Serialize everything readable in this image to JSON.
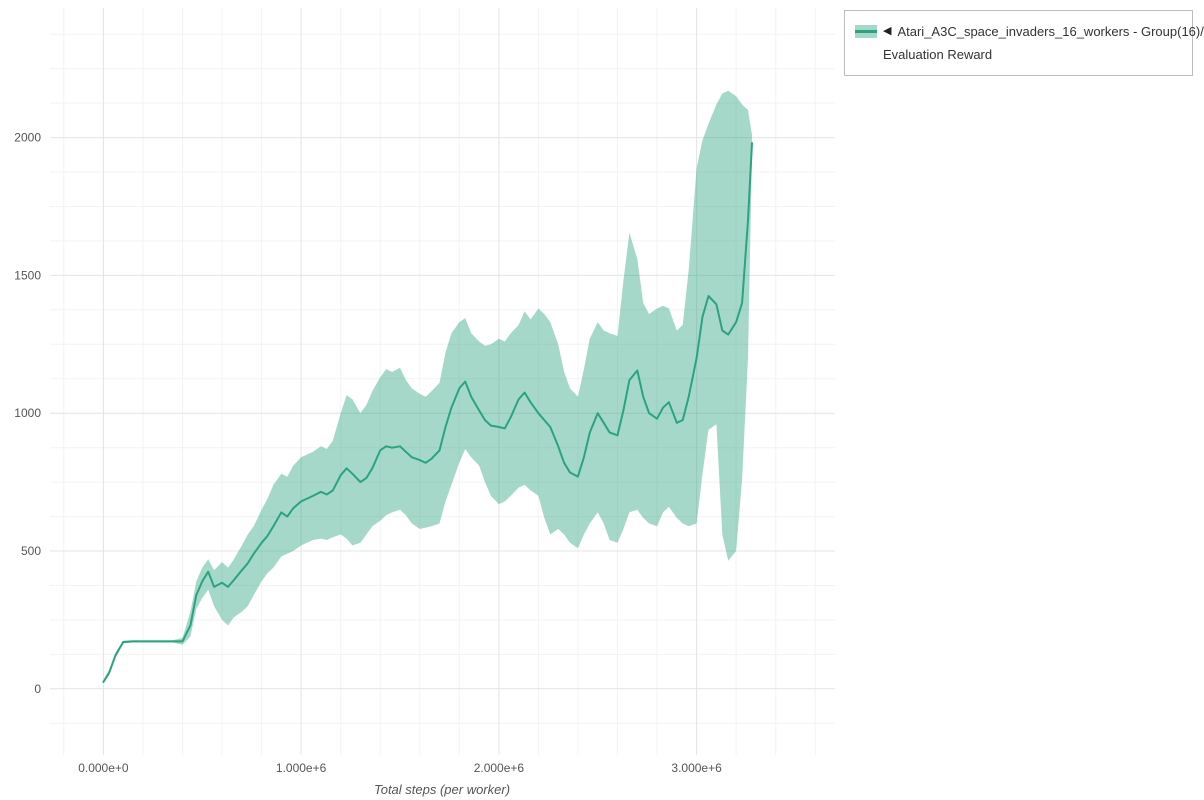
{
  "legend": {
    "marker": "◀",
    "series_name": "Atari_A3C_space_invaders_16_workers - Group(16)/",
    "metric_name": "Evaluation Reward"
  },
  "colors": {
    "accent": "#2aa381",
    "grid_major": "#e4e4e4",
    "grid_minor": "#f3f3f3",
    "tick_text": "#555555"
  },
  "chart_data": {
    "type": "line",
    "title": "",
    "xlabel": "Total steps (per worker)",
    "ylabel": "",
    "legend_position": "top-right",
    "grid": true,
    "xlim": [
      -270000,
      3700000
    ],
    "ylim": [
      -240,
      2470
    ],
    "x_ticks": [
      {
        "value": 0,
        "label": "0.000e+0"
      },
      {
        "value": 1000000,
        "label": "1.000e+6"
      },
      {
        "value": 2000000,
        "label": "2.000e+6"
      },
      {
        "value": 3000000,
        "label": "3.000e+6"
      }
    ],
    "y_ticks": [
      {
        "value": 0,
        "label": "0"
      },
      {
        "value": 500,
        "label": "500"
      },
      {
        "value": 1000,
        "label": "1000"
      },
      {
        "value": 1500,
        "label": "1500"
      },
      {
        "value": 2000,
        "label": "2000"
      }
    ],
    "series": [
      {
        "name": "Atari_A3C_space_invaders_16_workers - Group(16)/ Evaluation Reward",
        "color": "#2aa381",
        "band_color": "#2aa381",
        "band_opacity": 0.42,
        "x": [
          0,
          30000,
          60000,
          100000,
          150000,
          200000,
          250000,
          300000,
          350000,
          400000,
          440000,
          470000,
          500000,
          530000,
          560000,
          600000,
          630000,
          660000,
          700000,
          730000,
          760000,
          800000,
          830000,
          860000,
          900000,
          930000,
          960000,
          1000000,
          1030000,
          1060000,
          1100000,
          1130000,
          1160000,
          1200000,
          1230000,
          1260000,
          1300000,
          1330000,
          1360000,
          1400000,
          1430000,
          1460000,
          1500000,
          1530000,
          1560000,
          1600000,
          1630000,
          1660000,
          1700000,
          1730000,
          1760000,
          1800000,
          1830000,
          1860000,
          1900000,
          1930000,
          1960000,
          2000000,
          2030000,
          2060000,
          2100000,
          2130000,
          2160000,
          2200000,
          2230000,
          2260000,
          2300000,
          2330000,
          2360000,
          2400000,
          2430000,
          2460000,
          2500000,
          2530000,
          2560000,
          2600000,
          2630000,
          2660000,
          2700000,
          2730000,
          2760000,
          2800000,
          2830000,
          2860000,
          2900000,
          2930000,
          2960000,
          3000000,
          3030000,
          3060000,
          3100000,
          3130000,
          3160000,
          3200000,
          3230000,
          3260000,
          3280000
        ],
        "mean": [
          25,
          60,
          120,
          170,
          172,
          172,
          172,
          172,
          172,
          172,
          230,
          340,
          390,
          425,
          370,
          385,
          370,
          395,
          430,
          455,
          490,
          530,
          555,
          590,
          640,
          625,
          655,
          680,
          690,
          700,
          715,
          705,
          720,
          775,
          800,
          780,
          750,
          765,
          800,
          865,
          880,
          875,
          880,
          860,
          840,
          830,
          820,
          835,
          865,
          950,
          1020,
          1090,
          1115,
          1060,
          1010,
          975,
          955,
          950,
          945,
          985,
          1050,
          1075,
          1040,
          1000,
          975,
          950,
          880,
          820,
          785,
          770,
          840,
          930,
          1000,
          965,
          930,
          920,
          1010,
          1120,
          1155,
          1060,
          1000,
          980,
          1020,
          1040,
          965,
          975,
          1060,
          1200,
          1350,
          1425,
          1395,
          1300,
          1285,
          1330,
          1400,
          1700,
          1980
        ],
        "lower": [
          20,
          50,
          110,
          165,
          168,
          168,
          168,
          168,
          168,
          160,
          190,
          290,
          330,
          360,
          300,
          250,
          230,
          260,
          280,
          300,
          340,
          390,
          420,
          440,
          480,
          490,
          500,
          520,
          530,
          540,
          545,
          540,
          550,
          560,
          545,
          520,
          530,
          560,
          590,
          610,
          630,
          640,
          650,
          630,
          600,
          580,
          585,
          590,
          600,
          680,
          740,
          820,
          870,
          840,
          810,
          750,
          700,
          670,
          680,
          700,
          730,
          740,
          720,
          700,
          620,
          560,
          580,
          560,
          530,
          510,
          560,
          600,
          640,
          600,
          540,
          530,
          580,
          640,
          650,
          620,
          600,
          590,
          640,
          660,
          620,
          600,
          590,
          600,
          780,
          940,
          960,
          560,
          465,
          500,
          760,
          1200,
          1950
        ],
        "upper": [
          30,
          70,
          130,
          175,
          176,
          176,
          176,
          176,
          176,
          185,
          280,
          390,
          440,
          470,
          430,
          460,
          440,
          470,
          520,
          560,
          590,
          650,
          690,
          740,
          780,
          770,
          810,
          840,
          850,
          860,
          880,
          870,
          900,
          1000,
          1065,
          1050,
          1000,
          1030,
          1080,
          1130,
          1160,
          1150,
          1165,
          1120,
          1090,
          1070,
          1060,
          1080,
          1110,
          1220,
          1290,
          1330,
          1345,
          1290,
          1260,
          1245,
          1250,
          1270,
          1260,
          1290,
          1320,
          1370,
          1340,
          1380,
          1360,
          1330,
          1250,
          1150,
          1090,
          1060,
          1160,
          1270,
          1330,
          1300,
          1290,
          1280,
          1480,
          1655,
          1560,
          1400,
          1360,
          1380,
          1390,
          1380,
          1300,
          1320,
          1520,
          1890,
          1990,
          2050,
          2120,
          2160,
          2170,
          2150,
          2120,
          2100,
          2010
        ]
      }
    ]
  }
}
